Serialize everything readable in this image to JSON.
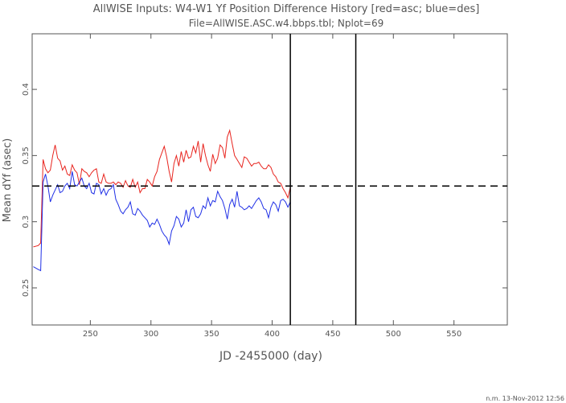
{
  "chart_data": {
    "type": "line",
    "title": "AllWISE Inputs: W4-W1 Yf Position Difference History [red=asc; blue=des]",
    "subtitle": "File=AllWISE.ASC.w4.bbps.tbl; Nplot=69",
    "xlabel": "JD -2455000 (day)",
    "ylabel": "Mean dYf (asec)",
    "footer": "n.m. 13-Nov-2012 12:56",
    "xlim": [
      202,
      594
    ],
    "ylim": [
      0.222,
      0.442
    ],
    "x_ticks": [
      250,
      300,
      350,
      400,
      450,
      500,
      550
    ],
    "y_ticks": [
      0.25,
      0.3,
      0.35,
      0.4
    ],
    "x_tick_labels": [
      "250",
      "300",
      "350",
      "400",
      "450",
      "500",
      "550"
    ],
    "y_tick_labels": [
      "0.25",
      "0.3",
      "0.35",
      "0.4"
    ],
    "reference_line_y": 0.327,
    "vertical_lines_x": [
      415,
      469
    ],
    "colors": {
      "asc": "#e8251f",
      "des": "#1f2fe6",
      "axes": "#555555",
      "markers": "#000000"
    },
    "series": [
      {
        "key": "asc",
        "color": "#e8251f",
        "x": [
          203,
          207,
          209,
          211,
          213,
          215,
          217,
          219,
          221,
          223,
          225,
          227,
          229,
          231,
          233,
          235,
          237,
          239,
          241,
          243,
          245,
          247,
          249,
          251,
          253,
          255,
          257,
          259,
          261,
          263,
          265,
          267,
          269,
          271,
          273,
          275,
          277,
          279,
          281,
          283,
          285,
          287,
          289,
          291,
          293,
          295,
          297,
          299,
          301,
          303,
          305,
          307,
          309,
          311,
          313,
          315,
          317,
          319,
          321,
          323,
          325,
          327,
          329,
          331,
          333,
          335,
          337,
          339,
          341,
          343,
          345,
          347,
          349,
          351,
          353,
          355,
          357,
          359,
          361,
          363,
          365,
          367,
          369,
          371,
          373,
          375,
          377,
          379,
          381,
          383,
          385,
          387,
          389,
          391,
          393,
          395,
          397,
          399,
          401,
          403,
          405,
          407,
          409,
          411,
          413,
          415
        ],
        "y": [
          0.281,
          0.282,
          0.284,
          0.347,
          0.34,
          0.337,
          0.339,
          0.35,
          0.358,
          0.348,
          0.346,
          0.339,
          0.342,
          0.336,
          0.335,
          0.343,
          0.339,
          0.337,
          0.328,
          0.34,
          0.338,
          0.337,
          0.334,
          0.337,
          0.339,
          0.34,
          0.33,
          0.329,
          0.336,
          0.33,
          0.329,
          0.329,
          0.33,
          0.328,
          0.33,
          0.329,
          0.326,
          0.331,
          0.327,
          0.326,
          0.332,
          0.326,
          0.33,
          0.322,
          0.325,
          0.325,
          0.332,
          0.33,
          0.327,
          0.334,
          0.338,
          0.347,
          0.352,
          0.357,
          0.349,
          0.338,
          0.33,
          0.344,
          0.35,
          0.342,
          0.353,
          0.345,
          0.354,
          0.348,
          0.349,
          0.357,
          0.352,
          0.361,
          0.345,
          0.359,
          0.35,
          0.343,
          0.338,
          0.351,
          0.344,
          0.348,
          0.358,
          0.356,
          0.348,
          0.364,
          0.369,
          0.359,
          0.35,
          0.347,
          0.344,
          0.341,
          0.349,
          0.348,
          0.345,
          0.342,
          0.344,
          0.344,
          0.345,
          0.342,
          0.34,
          0.34,
          0.343,
          0.341,
          0.336,
          0.334,
          0.33,
          0.329,
          0.325,
          0.322,
          0.318,
          0.326
        ]
      },
      {
        "key": "des",
        "color": "#1f2fe6",
        "x": [
          203,
          207,
          209,
          211,
          213,
          215,
          217,
          219,
          221,
          223,
          225,
          227,
          229,
          231,
          233,
          235,
          237,
          239,
          241,
          243,
          245,
          247,
          249,
          251,
          253,
          255,
          257,
          259,
          261,
          263,
          265,
          267,
          269,
          271,
          273,
          275,
          277,
          279,
          281,
          283,
          285,
          287,
          289,
          291,
          293,
          295,
          297,
          299,
          301,
          303,
          305,
          307,
          309,
          311,
          313,
          315,
          317,
          319,
          321,
          323,
          325,
          327,
          329,
          331,
          333,
          335,
          337,
          339,
          341,
          343,
          345,
          347,
          349,
          351,
          353,
          355,
          357,
          359,
          361,
          363,
          365,
          367,
          369,
          371,
          373,
          375,
          377,
          379,
          381,
          383,
          385,
          387,
          389,
          391,
          393,
          395,
          397,
          399,
          401,
          403,
          405,
          407,
          409,
          411,
          413,
          415
        ],
        "y": [
          0.266,
          0.264,
          0.263,
          0.33,
          0.336,
          0.327,
          0.315,
          0.32,
          0.324,
          0.328,
          0.322,
          0.323,
          0.327,
          0.329,
          0.325,
          0.338,
          0.328,
          0.327,
          0.33,
          0.333,
          0.327,
          0.325,
          0.329,
          0.322,
          0.321,
          0.329,
          0.328,
          0.321,
          0.325,
          0.32,
          0.324,
          0.325,
          0.328,
          0.317,
          0.313,
          0.308,
          0.306,
          0.309,
          0.311,
          0.315,
          0.306,
          0.305,
          0.31,
          0.308,
          0.305,
          0.303,
          0.301,
          0.296,
          0.299,
          0.298,
          0.302,
          0.298,
          0.293,
          0.29,
          0.288,
          0.283,
          0.293,
          0.297,
          0.304,
          0.302,
          0.296,
          0.299,
          0.309,
          0.3,
          0.309,
          0.311,
          0.304,
          0.303,
          0.306,
          0.312,
          0.31,
          0.318,
          0.312,
          0.316,
          0.315,
          0.323,
          0.319,
          0.316,
          0.31,
          0.302,
          0.313,
          0.317,
          0.311,
          0.323,
          0.312,
          0.311,
          0.309,
          0.31,
          0.312,
          0.31,
          0.313,
          0.316,
          0.318,
          0.315,
          0.31,
          0.309,
          0.303,
          0.311,
          0.315,
          0.313,
          0.308,
          0.316,
          0.317,
          0.315,
          0.311,
          0.315
        ]
      }
    ]
  }
}
